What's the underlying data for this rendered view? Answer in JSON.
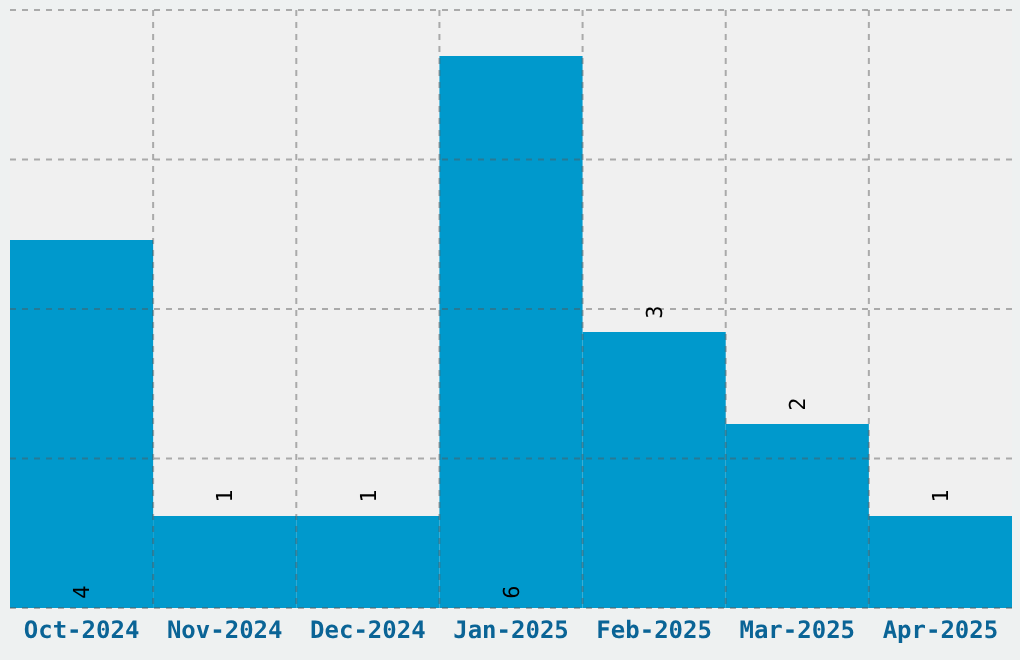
{
  "chart_data": {
    "type": "bar",
    "categories": [
      "Oct-2024",
      "Nov-2024",
      "Dec-2024",
      "Jan-2025",
      "Feb-2025",
      "Mar-2025",
      "Apr-2025"
    ],
    "values": [
      4,
      1,
      1,
      6,
      3,
      2,
      1
    ],
    "color": "#0099cc",
    "ylim": [
      0,
      6.5
    ],
    "yticks": [
      {
        "value": 0,
        "label": null
      },
      {
        "value": 1.625,
        "label": null
      },
      {
        "value": 3.25,
        "label": null
      },
      {
        "value": 4.875,
        "label": null
      },
      {
        "value": 6.5,
        "label": null
      }
    ],
    "tick_labels": "x",
    "grid": true,
    "data_labels": true
  }
}
